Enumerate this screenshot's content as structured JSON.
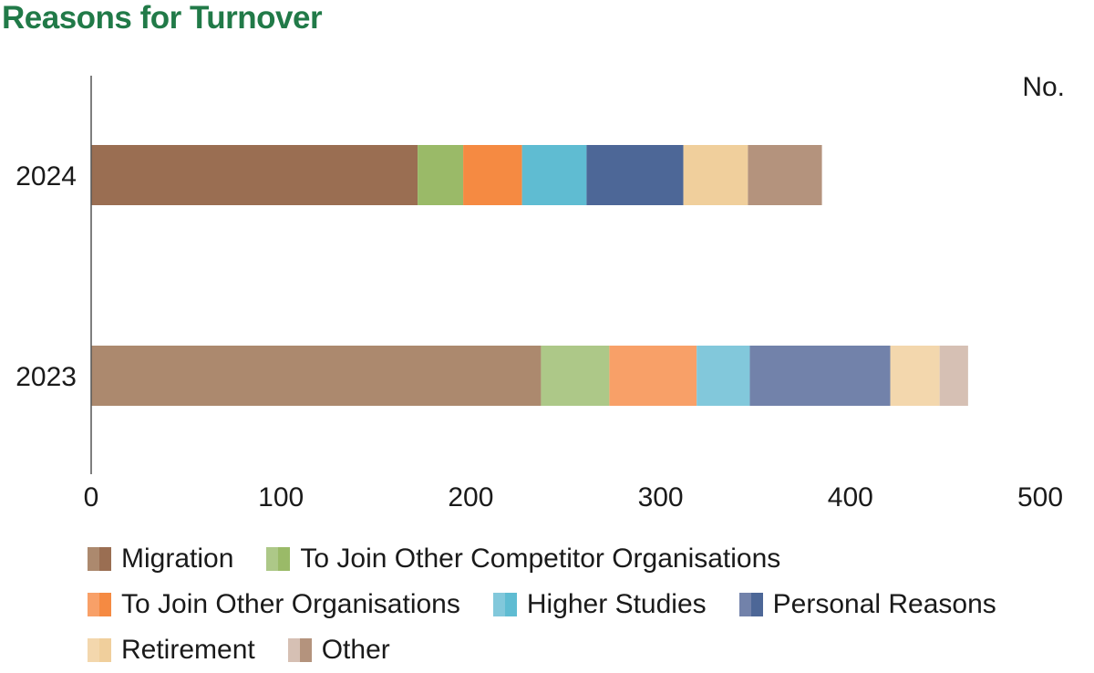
{
  "title": "Reasons for Turnover",
  "chart_data": {
    "type": "bar",
    "orientation": "horizontal",
    "stacked": true,
    "title": "Reasons for Turnover",
    "xlabel": "No.",
    "ylabel": "",
    "xlim": [
      0,
      500
    ],
    "xticks": [
      0,
      100,
      200,
      300,
      400,
      500
    ],
    "grid": false,
    "legend_position": "bottom",
    "categories": [
      "2024",
      "2023"
    ],
    "series": [
      {
        "name": "Migration",
        "values": [
          172,
          237
        ],
        "colors": [
          "#9a6e52",
          "#ac896e"
        ]
      },
      {
        "name": "To Join Other Competitor Organisations",
        "values": [
          24,
          36
        ],
        "colors": [
          "#9aba68",
          "#adc888"
        ]
      },
      {
        "name": "To Join Other Organisations",
        "values": [
          31,
          46
        ],
        "colors": [
          "#f58a42",
          "#f8a068"
        ]
      },
      {
        "name": "Higher Studies",
        "values": [
          34,
          28
        ],
        "colors": [
          "#5fbcd2",
          "#82c8db"
        ]
      },
      {
        "name": "Personal Reasons",
        "values": [
          51,
          74
        ],
        "colors": [
          "#4d6797",
          "#7282aa"
        ]
      },
      {
        "name": "Retirement",
        "values": [
          34,
          26
        ],
        "colors": [
          "#f0cf9c",
          "#f3d7ad"
        ]
      },
      {
        "name": "Other",
        "values": [
          39,
          15
        ],
        "colors": [
          "#b4937d",
          "#d6c0b4"
        ]
      }
    ]
  }
}
